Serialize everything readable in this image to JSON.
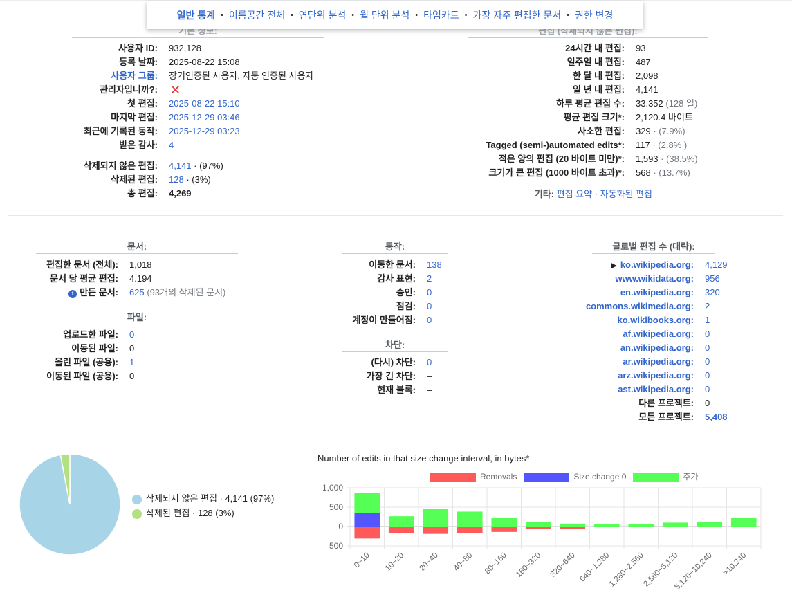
{
  "nav": {
    "items": [
      {
        "label": "일반 통계",
        "active": true
      },
      {
        "label": "이름공간 전체",
        "active": false
      },
      {
        "label": "연단위 분석",
        "active": false
      },
      {
        "label": "월 단위 분석",
        "active": false
      },
      {
        "label": "타임카드",
        "active": false
      },
      {
        "label": "가장 자주 편집한 문서",
        "active": false
      },
      {
        "label": "권한 변경",
        "active": false
      }
    ],
    "separator": "•"
  },
  "basic": {
    "header": "기본 정보:",
    "user_id_label": "사용자 ID:",
    "user_id": "932,128",
    "registered_label": "등록 날짜:",
    "registered": "2025-08-22 15:08",
    "groups_label": "사용자 그룹:",
    "groups": "장기인증된 사용자, 자동 인증된 사용자",
    "admin_label": "관리자입니까?:",
    "admin_value": "✕",
    "first_edit_label": "첫 편집:",
    "first_edit": "2025-08-22 15:10",
    "last_edit_label": "마지막 편집:",
    "last_edit": "2025-12-29 03:46",
    "last_action_label": "최근에 기록된 동작:",
    "last_action": "2025-12-29 03:23",
    "thanks_label": "받은 감사:",
    "thanks": "4",
    "live_label": "삭제되지 않은 편집:",
    "live": "4,141",
    "live_pct": " · (97%)",
    "deleted_label": "삭제된 편집:",
    "deleted": "128",
    "deleted_pct": " · (3%)",
    "total_label": "총 편집:",
    "total": "4,269"
  },
  "edits": {
    "header": "편집 (삭제되지 않은 편집):",
    "rows": [
      {
        "label": "24시간 내 편집:",
        "value": "93",
        "extra": ""
      },
      {
        "label": "일주일 내 편집:",
        "value": "487",
        "extra": ""
      },
      {
        "label": "한 달 내 편집:",
        "value": "2,098",
        "extra": ""
      },
      {
        "label": "일 년 내 편집:",
        "value": "4,141",
        "extra": ""
      },
      {
        "label": "하루 평균 편집 수:",
        "value": "33.352",
        "extra": " (128 일)"
      },
      {
        "label": "평균 편집 크기*:",
        "value": "2,120.4 바이트",
        "extra": ""
      },
      {
        "label": "사소한 편집:",
        "value": "329",
        "extra": " · (7.9%)"
      },
      {
        "label": "Tagged (semi-)automated edits*:",
        "value": "117",
        "extra": " · (2.8% )"
      },
      {
        "label": "적은 양의 편집 (20 바이트 미만)*:",
        "value": "1,593",
        "extra": " · (38.5%)"
      },
      {
        "label": "크기가 큰 편집 (1000 바이트 초과)*:",
        "value": "568",
        "extra": " · (13.7%)"
      }
    ],
    "other_label": "기타:",
    "other_link1": "편집 요약",
    "other_sep": " · ",
    "other_link2": "자동화된 편집"
  },
  "pages": {
    "header": "문서:",
    "edited_label": "편집한 문서 (전체):",
    "edited": "1,018",
    "avg_label": "문서 당 평균 편집:",
    "avg": "4.194",
    "created_label": "만든 문서:",
    "created": "625",
    "created_extra": " (93개의 삭제된 문서)"
  },
  "files": {
    "header": "파일:",
    "rows": [
      {
        "label": "업로드한 파일:",
        "value": "0",
        "link": true
      },
      {
        "label": "이동된 파일:",
        "value": "0",
        "link": false
      },
      {
        "label": "올린 파일 (공용):",
        "value": "1",
        "link": true
      },
      {
        "label": "이동된 파일 (공용):",
        "value": "0",
        "link": false
      }
    ]
  },
  "actions": {
    "header": "동작:",
    "rows": [
      {
        "label": "이동한 문서:",
        "value": "138",
        "link": true
      },
      {
        "label": "감사 표현:",
        "value": "2",
        "link": true
      },
      {
        "label": "승인:",
        "value": "0",
        "link": true
      },
      {
        "label": "점검:",
        "value": "0",
        "link": true
      },
      {
        "label": "계정이 만들어짐:",
        "value": "0",
        "link": true
      }
    ]
  },
  "blocks": {
    "header": "차단:",
    "rows": [
      {
        "label": "(다시) 차단:",
        "value": "0",
        "link": true
      },
      {
        "label": "가장 긴 차단:",
        "value": "–",
        "link": false
      },
      {
        "label": "현재 블록:",
        "value": "–",
        "link": false
      }
    ]
  },
  "global": {
    "header": "글로벌 편집 수 (대략):",
    "arrow": "▶",
    "rows": [
      {
        "label": "ko.wikipedia.org:",
        "value": "4,129"
      },
      {
        "label": "www.wikidata.org:",
        "value": "956"
      },
      {
        "label": "en.wikipedia.org:",
        "value": "320"
      },
      {
        "label": "commons.wikimedia.org:",
        "value": "2"
      },
      {
        "label": "ko.wikibooks.org:",
        "value": "1"
      },
      {
        "label": "af.wikipedia.org:",
        "value": "0"
      },
      {
        "label": "an.wikipedia.org:",
        "value": "0"
      },
      {
        "label": "ar.wikipedia.org:",
        "value": "0"
      },
      {
        "label": "arz.wikipedia.org:",
        "value": "0"
      },
      {
        "label": "ast.wikipedia.org:",
        "value": "0"
      }
    ],
    "other_label": "다른 프로젝트:",
    "other_value": "0",
    "all_label": "모든 프로젝트:",
    "all_value": "5,408"
  },
  "pie": {
    "slices": [
      {
        "label": "삭제되지 않은 편집 · 4,141 (97%)",
        "value": 4141,
        "color": "#a8d4e8"
      },
      {
        "label": "삭제된 편집 · 128 (3%)",
        "value": 128,
        "color": "#b4e084"
      }
    ]
  },
  "chart_data": {
    "type": "bar",
    "title": "Number of edits in that size change interval, in bytes*",
    "categories": [
      "0~10",
      "10~20",
      "20~40",
      "40~80",
      "80~160",
      "160~320",
      "320~640",
      "640~1,280",
      "1,280~2,560",
      "2,560~5,120",
      "5,120~10,240",
      ">10,240"
    ],
    "series": [
      {
        "name": "Removals",
        "color": "#ff5a5a",
        "values": [
          -310,
          -175,
          -190,
          -175,
          -140,
          -55,
          -55,
          0,
          0,
          0,
          0,
          0
        ]
      },
      {
        "name": "Size change 0",
        "color": "#5555ff",
        "values": [
          340,
          0,
          0,
          0,
          0,
          0,
          0,
          0,
          0,
          0,
          0,
          0
        ]
      },
      {
        "name": "추가",
        "color": "#55ff55",
        "values": [
          530,
          265,
          460,
          385,
          230,
          120,
          75,
          70,
          70,
          100,
          125,
          225
        ]
      }
    ],
    "ylim": [
      -500,
      1000
    ],
    "yticks": [
      {
        "v": 1000,
        "label": "1,000"
      },
      {
        "v": 500,
        "label": "500"
      },
      {
        "v": 0,
        "label": "0"
      },
      {
        "v": -500,
        "label": "500"
      }
    ],
    "legend_position": "top"
  }
}
